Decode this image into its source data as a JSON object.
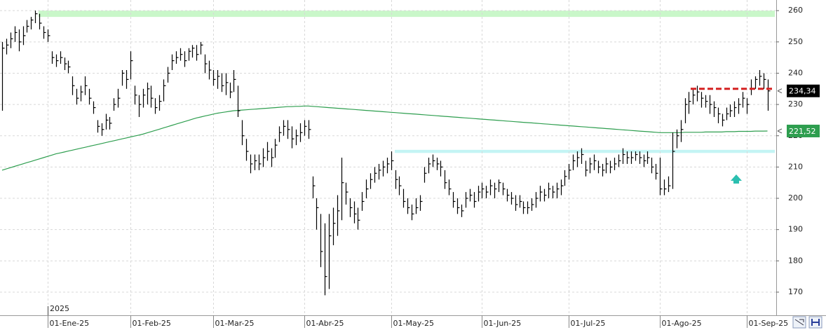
{
  "chart_data": {
    "type": "ohlc",
    "year_label": "2025",
    "color": "#000000",
    "grid": true,
    "ylim": [
      162.6,
      263.4
    ],
    "yticks": [
      170,
      180,
      190,
      200,
      210,
      220,
      230,
      240,
      250,
      260
    ],
    "categories": [
      null,
      null,
      null,
      null,
      null,
      null,
      null,
      null,
      null,
      null,
      null,
      "01-Ene-25",
      null,
      null,
      null,
      null,
      null,
      null,
      null,
      null,
      null,
      null,
      null,
      null,
      null,
      null,
      null,
      null,
      null,
      null,
      null,
      "01-Feb-25",
      null,
      null,
      null,
      null,
      null,
      null,
      null,
      null,
      null,
      null,
      null,
      null,
      null,
      null,
      null,
      null,
      null,
      null,
      null,
      "01-Mar-25",
      null,
      null,
      null,
      null,
      null,
      null,
      null,
      null,
      null,
      null,
      null,
      null,
      null,
      null,
      null,
      null,
      null,
      null,
      null,
      null,
      null,
      "01-Abr-25",
      null,
      null,
      null,
      null,
      null,
      null,
      null,
      null,
      null,
      null,
      null,
      null,
      null,
      null,
      null,
      null,
      null,
      null,
      null,
      null,
      "01-May-25",
      null,
      null,
      null,
      null,
      null,
      null,
      null,
      null,
      null,
      null,
      null,
      null,
      null,
      null,
      null,
      null,
      null,
      null,
      null,
      null,
      null,
      "01-Jun-25",
      null,
      null,
      null,
      null,
      null,
      null,
      null,
      null,
      null,
      null,
      null,
      null,
      null,
      null,
      null,
      null,
      null,
      null,
      null,
      null,
      "01-Jul-25",
      null,
      null,
      null,
      null,
      null,
      null,
      null,
      null,
      null,
      null,
      null,
      null,
      null,
      null,
      null,
      null,
      null,
      null,
      null,
      null,
      null,
      "01-Ago-25",
      null,
      null,
      null,
      null,
      null,
      null,
      null,
      null,
      null,
      null,
      null,
      null,
      null,
      null,
      null,
      null,
      null,
      null,
      null,
      null,
      "01-Sep-25",
      null,
      null,
      null,
      null,
      null
    ],
    "high": [
      250,
      251,
      253,
      255,
      254,
      255,
      257,
      258,
      260,
      259,
      255,
      254,
      247,
      246,
      247,
      245,
      244,
      239,
      235,
      236,
      239,
      235,
      231,
      225,
      224,
      227,
      226,
      232,
      235,
      241,
      241,
      247,
      236,
      233,
      235,
      237,
      236,
      232,
      233,
      238,
      242,
      246,
      247,
      248,
      247,
      248,
      249,
      249,
      250,
      246,
      244,
      241,
      241,
      240,
      240,
      237,
      241,
      236,
      225,
      219,
      214,
      214,
      214,
      216,
      218,
      216,
      219,
      223,
      225,
      225,
      223,
      222,
      224,
      225,
      225,
      207,
      200,
      195,
      192,
      195,
      197,
      201,
      213,
      205,
      200,
      199,
      197,
      202,
      206,
      208,
      210,
      211,
      212,
      213,
      215,
      209,
      207,
      203,
      200,
      198,
      200,
      201,
      210,
      213,
      214,
      213,
      212,
      209,
      206,
      202,
      200,
      198,
      202,
      203,
      202,
      204,
      205,
      204,
      206,
      205,
      206,
      205,
      203,
      202,
      201,
      201,
      199,
      199,
      200,
      202,
      204,
      203,
      205,
      204,
      205,
      206,
      209,
      211,
      214,
      215,
      216,
      212,
      213,
      214,
      212,
      211,
      213,
      212,
      213,
      214,
      216,
      215,
      215,
      215,
      215,
      214,
      215,
      213,
      211,
      213,
      206,
      207,
      221,
      222,
      225,
      232,
      234,
      235,
      236,
      234,
      233,
      233,
      231,
      229,
      227,
      229,
      230,
      231,
      232,
      234,
      232,
      238,
      239,
      241,
      240,
      238
    ],
    "low": [
      228,
      246,
      248,
      250,
      247,
      249,
      253,
      254,
      256,
      254,
      251,
      250,
      243,
      242,
      243,
      241,
      240,
      233,
      230,
      231,
      233,
      230,
      227,
      221,
      220,
      222,
      222,
      228,
      229,
      236,
      235,
      238,
      230,
      226,
      229,
      230,
      229,
      227,
      228,
      231,
      237,
      241,
      243,
      244,
      242,
      244,
      245,
      244,
      246,
      240,
      238,
      236,
      235,
      234,
      233,
      232,
      234,
      226,
      217,
      212,
      208,
      209,
      209,
      210,
      212,
      210,
      213,
      218,
      220,
      219,
      216,
      217,
      218,
      220,
      219,
      200,
      190,
      178,
      169,
      171,
      185,
      188,
      193,
      198,
      194,
      192,
      190,
      196,
      200,
      203,
      205,
      206,
      207,
      208,
      209,
      203,
      201,
      197,
      195,
      193,
      195,
      196,
      205,
      208,
      210,
      209,
      207,
      203,
      201,
      197,
      195,
      194,
      197,
      199,
      197,
      199,
      200,
      200,
      201,
      200,
      202,
      201,
      199,
      198,
      196,
      197,
      195,
      195,
      196,
      197,
      199,
      199,
      200,
      200,
      200,
      201,
      204,
      206,
      209,
      210,
      211,
      207,
      208,
      209,
      208,
      207,
      208,
      208,
      209,
      210,
      211,
      211,
      211,
      212,
      211,
      210,
      211,
      208,
      206,
      201,
      201,
      202,
      203,
      216,
      218,
      224,
      227,
      230,
      231,
      229,
      229,
      227,
      226,
      224,
      223,
      225,
      226,
      226,
      227,
      229,
      227,
      233,
      235,
      236,
      235,
      228
    ],
    "close": [
      248,
      249,
      251,
      253,
      250,
      252,
      255,
      257,
      259,
      256,
      253,
      252,
      245,
      244,
      245,
      243,
      242,
      236,
      232,
      234,
      236,
      232,
      229,
      223,
      222,
      225,
      224,
      230,
      232,
      240,
      238,
      244,
      233,
      230,
      233,
      235,
      232,
      229,
      231,
      236,
      240,
      244,
      245,
      246,
      244,
      247,
      248,
      246,
      249,
      243,
      241,
      238,
      239,
      236,
      237,
      234,
      238,
      228,
      220,
      215,
      211,
      212,
      211,
      213,
      215,
      213,
      217,
      221,
      223,
      222,
      219,
      220,
      221,
      223,
      222,
      204,
      197,
      183,
      175,
      188,
      192,
      196,
      205,
      202,
      197,
      195,
      193,
      199,
      203,
      206,
      208,
      209,
      210,
      211,
      212,
      206,
      204,
      199,
      197,
      195,
      197,
      199,
      208,
      211,
      212,
      211,
      210,
      205,
      203,
      199,
      197,
      196,
      200,
      201,
      199,
      202,
      203,
      202,
      204,
      203,
      205,
      203,
      201,
      200,
      198,
      199,
      197,
      197,
      198,
      200,
      202,
      201,
      203,
      202,
      203,
      204,
      207,
      209,
      212,
      213,
      214,
      209,
      211,
      212,
      210,
      209,
      211,
      210,
      211,
      212,
      214,
      213,
      213,
      214,
      213,
      212,
      213,
      210,
      208,
      203,
      203,
      204,
      215,
      220,
      222,
      230,
      231,
      233,
      234,
      232,
      231,
      230,
      229,
      227,
      225,
      227,
      228,
      229,
      230,
      232,
      230,
      235,
      238,
      239,
      238,
      234.34
    ],
    "moving_average": {
      "color": "#2e9e4f",
      "values": [
        209.0,
        209.4,
        209.8,
        210.2,
        210.6,
        211.0,
        211.4,
        211.8,
        212.2,
        212.6,
        213.0,
        213.4,
        213.8,
        214.2,
        214.5,
        214.8,
        215.1,
        215.4,
        215.7,
        216.0,
        216.3,
        216.6,
        216.9,
        217.2,
        217.5,
        217.8,
        218.1,
        218.4,
        218.7,
        219.0,
        219.3,
        219.6,
        219.9,
        220.2,
        220.5,
        220.9,
        221.3,
        221.7,
        222.1,
        222.5,
        222.9,
        223.3,
        223.7,
        224.1,
        224.5,
        224.9,
        225.3,
        225.7,
        226.0,
        226.3,
        226.6,
        226.9,
        227.2,
        227.4,
        227.6,
        227.8,
        228.0,
        228.1,
        228.2,
        228.3,
        228.4,
        228.5,
        228.6,
        228.7,
        228.8,
        228.9,
        229.0,
        229.1,
        229.2,
        229.3,
        229.3,
        229.4,
        229.4,
        229.5,
        229.5,
        229.4,
        229.3,
        229.2,
        229.1,
        229.0,
        228.9,
        228.8,
        228.7,
        228.6,
        228.5,
        228.4,
        228.3,
        228.2,
        228.1,
        228.0,
        227.9,
        227.8,
        227.7,
        227.6,
        227.5,
        227.4,
        227.3,
        227.2,
        227.1,
        227.0,
        226.9,
        226.8,
        226.7,
        226.6,
        226.5,
        226.4,
        226.3,
        226.2,
        226.1,
        226.0,
        225.9,
        225.8,
        225.7,
        225.6,
        225.5,
        225.4,
        225.3,
        225.2,
        225.1,
        225.0,
        224.9,
        224.8,
        224.7,
        224.6,
        224.5,
        224.4,
        224.3,
        224.2,
        224.1,
        224.0,
        223.9,
        223.8,
        223.7,
        223.6,
        223.5,
        223.4,
        223.3,
        223.2,
        223.1,
        223.0,
        222.9,
        222.8,
        222.7,
        222.6,
        222.5,
        222.4,
        222.3,
        222.2,
        222.1,
        222.0,
        221.9,
        221.8,
        221.7,
        221.6,
        221.5,
        221.4,
        221.3,
        221.2,
        221.1,
        221.0,
        221.0,
        221.0,
        221.0,
        221.0,
        221.0,
        221.1,
        221.1,
        221.1,
        221.1,
        221.1,
        221.2,
        221.2,
        221.2,
        221.2,
        221.2,
        221.3,
        221.3,
        221.3,
        221.4,
        221.4,
        221.4,
        221.4,
        221.5,
        221.5,
        221.5,
        221.52
      ]
    },
    "bands": [
      {
        "ylim": [
          258,
          260
        ],
        "color": "#c9f7c9"
      },
      {
        "ylim": [
          214.5,
          215.5
        ],
        "color": "#c4f4f4"
      }
    ],
    "level": {
      "value": 235,
      "color": "#d42020"
    },
    "price_tags": [
      {
        "value": 234.34,
        "label": "234,34",
        "color": "#000000"
      },
      {
        "value": 221.52,
        "label": "221,52",
        "color": "#2e9e4f"
      }
    ]
  }
}
